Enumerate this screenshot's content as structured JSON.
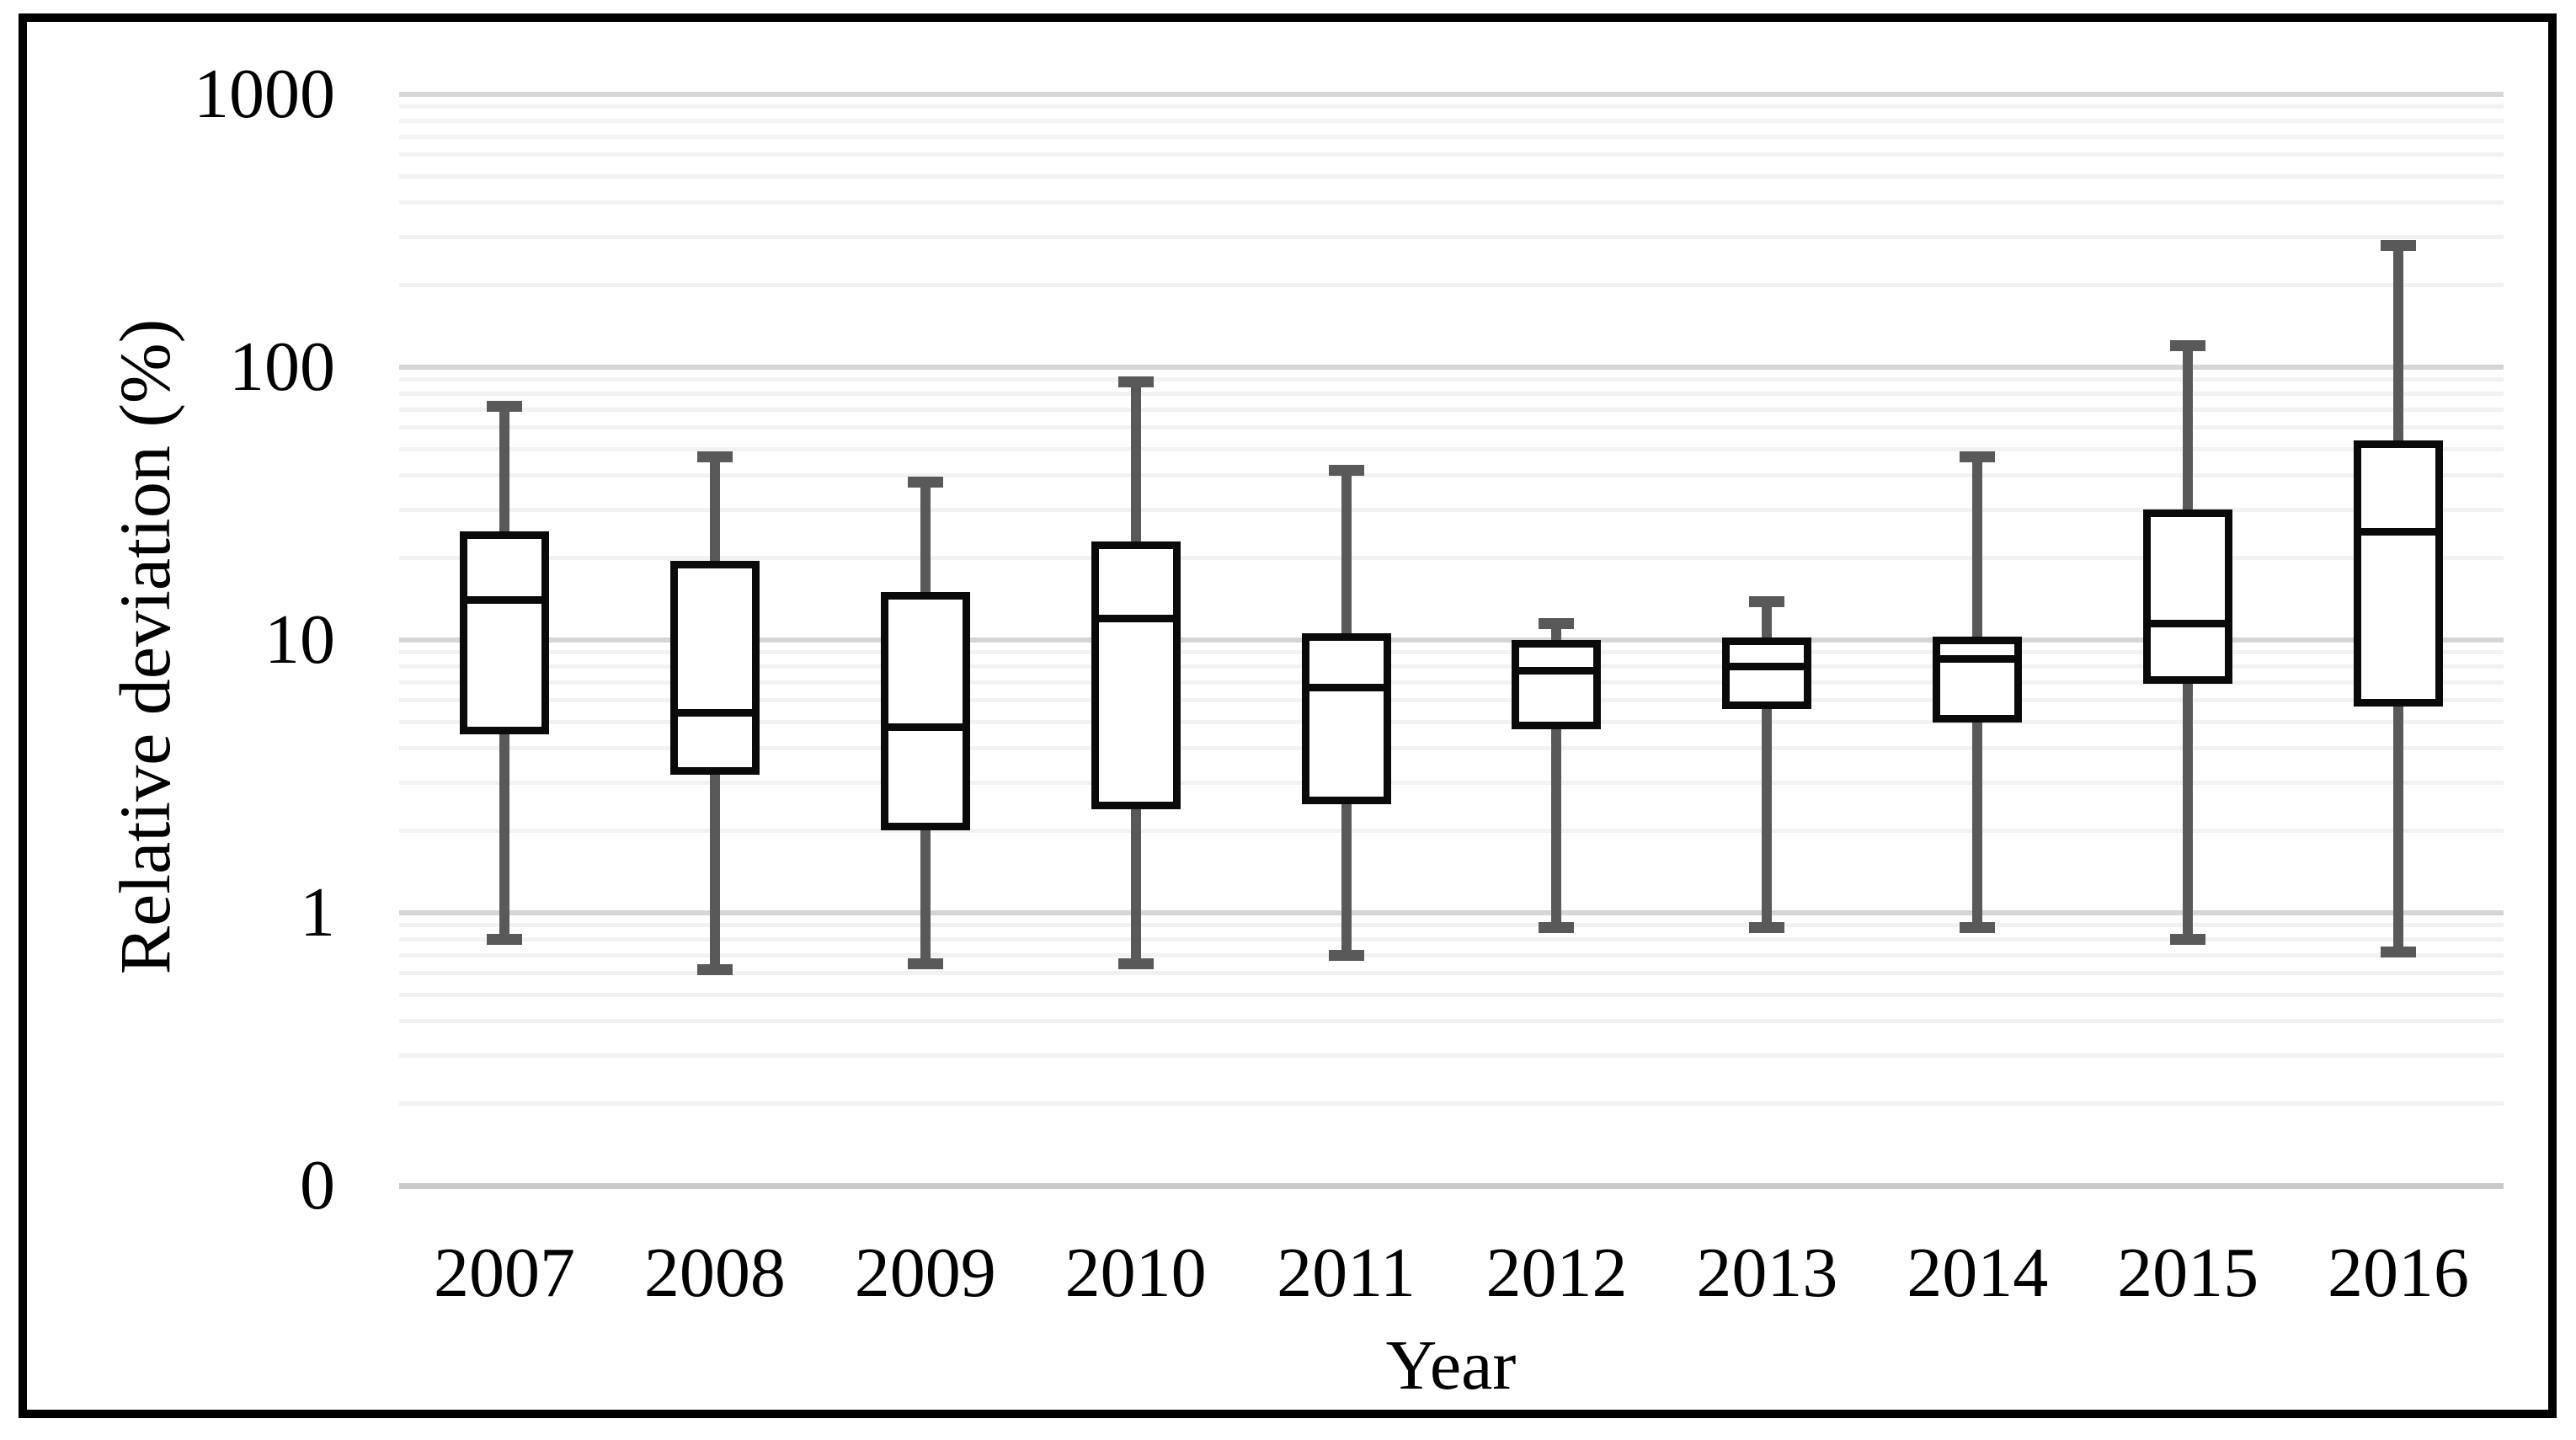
{
  "y_axis": {
    "title": "Relative deviation (%)",
    "scale": "log",
    "ticks": [
      {
        "label": "1000",
        "value": 1000
      },
      {
        "label": "100",
        "value": 100
      },
      {
        "label": "10",
        "value": 10
      },
      {
        "label": "1",
        "value": 1
      },
      {
        "label": "0",
        "value": 0.1
      }
    ]
  },
  "x_axis": {
    "title": "Year"
  },
  "chart_data": {
    "type": "boxplot",
    "title": "",
    "xlabel": "Year",
    "ylabel": "Relative deviation (%)",
    "y_scale": "log",
    "ylim": [
      0.1,
      1000
    ],
    "grid": "horizontal-log-major-and-minor",
    "categories": [
      "2007",
      "2008",
      "2009",
      "2010",
      "2011",
      "2012",
      "2013",
      "2014",
      "2015",
      "2016"
    ],
    "boxes": [
      {
        "year": "2007",
        "whisker_low": 0.8,
        "q1": 4.5,
        "median": 14.0,
        "q3": 25.0,
        "whisker_high": 72
      },
      {
        "year": "2008",
        "whisker_low": 0.62,
        "q1": 3.2,
        "median": 5.4,
        "q3": 19.5,
        "whisker_high": 47
      },
      {
        "year": "2009",
        "whisker_low": 0.65,
        "q1": 2.0,
        "median": 4.8,
        "q3": 15.0,
        "whisker_high": 38
      },
      {
        "year": "2010",
        "whisker_low": 0.65,
        "q1": 2.4,
        "median": 12.0,
        "q3": 23.0,
        "whisker_high": 88
      },
      {
        "year": "2011",
        "whisker_low": 0.7,
        "q1": 2.5,
        "median": 6.7,
        "q3": 10.6,
        "whisker_high": 42
      },
      {
        "year": "2012",
        "whisker_low": 0.88,
        "q1": 4.7,
        "median": 7.7,
        "q3": 10.0,
        "whisker_high": 11.5
      },
      {
        "year": "2013",
        "whisker_low": 0.88,
        "q1": 5.6,
        "median": 8.0,
        "q3": 10.2,
        "whisker_high": 13.8
      },
      {
        "year": "2014",
        "whisker_low": 0.88,
        "q1": 5.0,
        "median": 8.5,
        "q3": 10.3,
        "whisker_high": 47
      },
      {
        "year": "2015",
        "whisker_low": 0.8,
        "q1": 6.9,
        "median": 11.5,
        "q3": 30.0,
        "whisker_high": 120
      },
      {
        "year": "2016",
        "whisker_low": 0.72,
        "q1": 5.7,
        "median": 25.0,
        "q3": 54.0,
        "whisker_high": 280
      }
    ]
  },
  "colors": {
    "box_border": "#0a0a0a",
    "box_fill": "#ffffff",
    "median": "#0a0a0a",
    "whisker": "#595959",
    "gridline_major": "#d6d6d6",
    "gridline_minor": "#f2f2f2",
    "baseline": "#c9c9c9",
    "frame": "#000000",
    "background": "#ffffff"
  }
}
